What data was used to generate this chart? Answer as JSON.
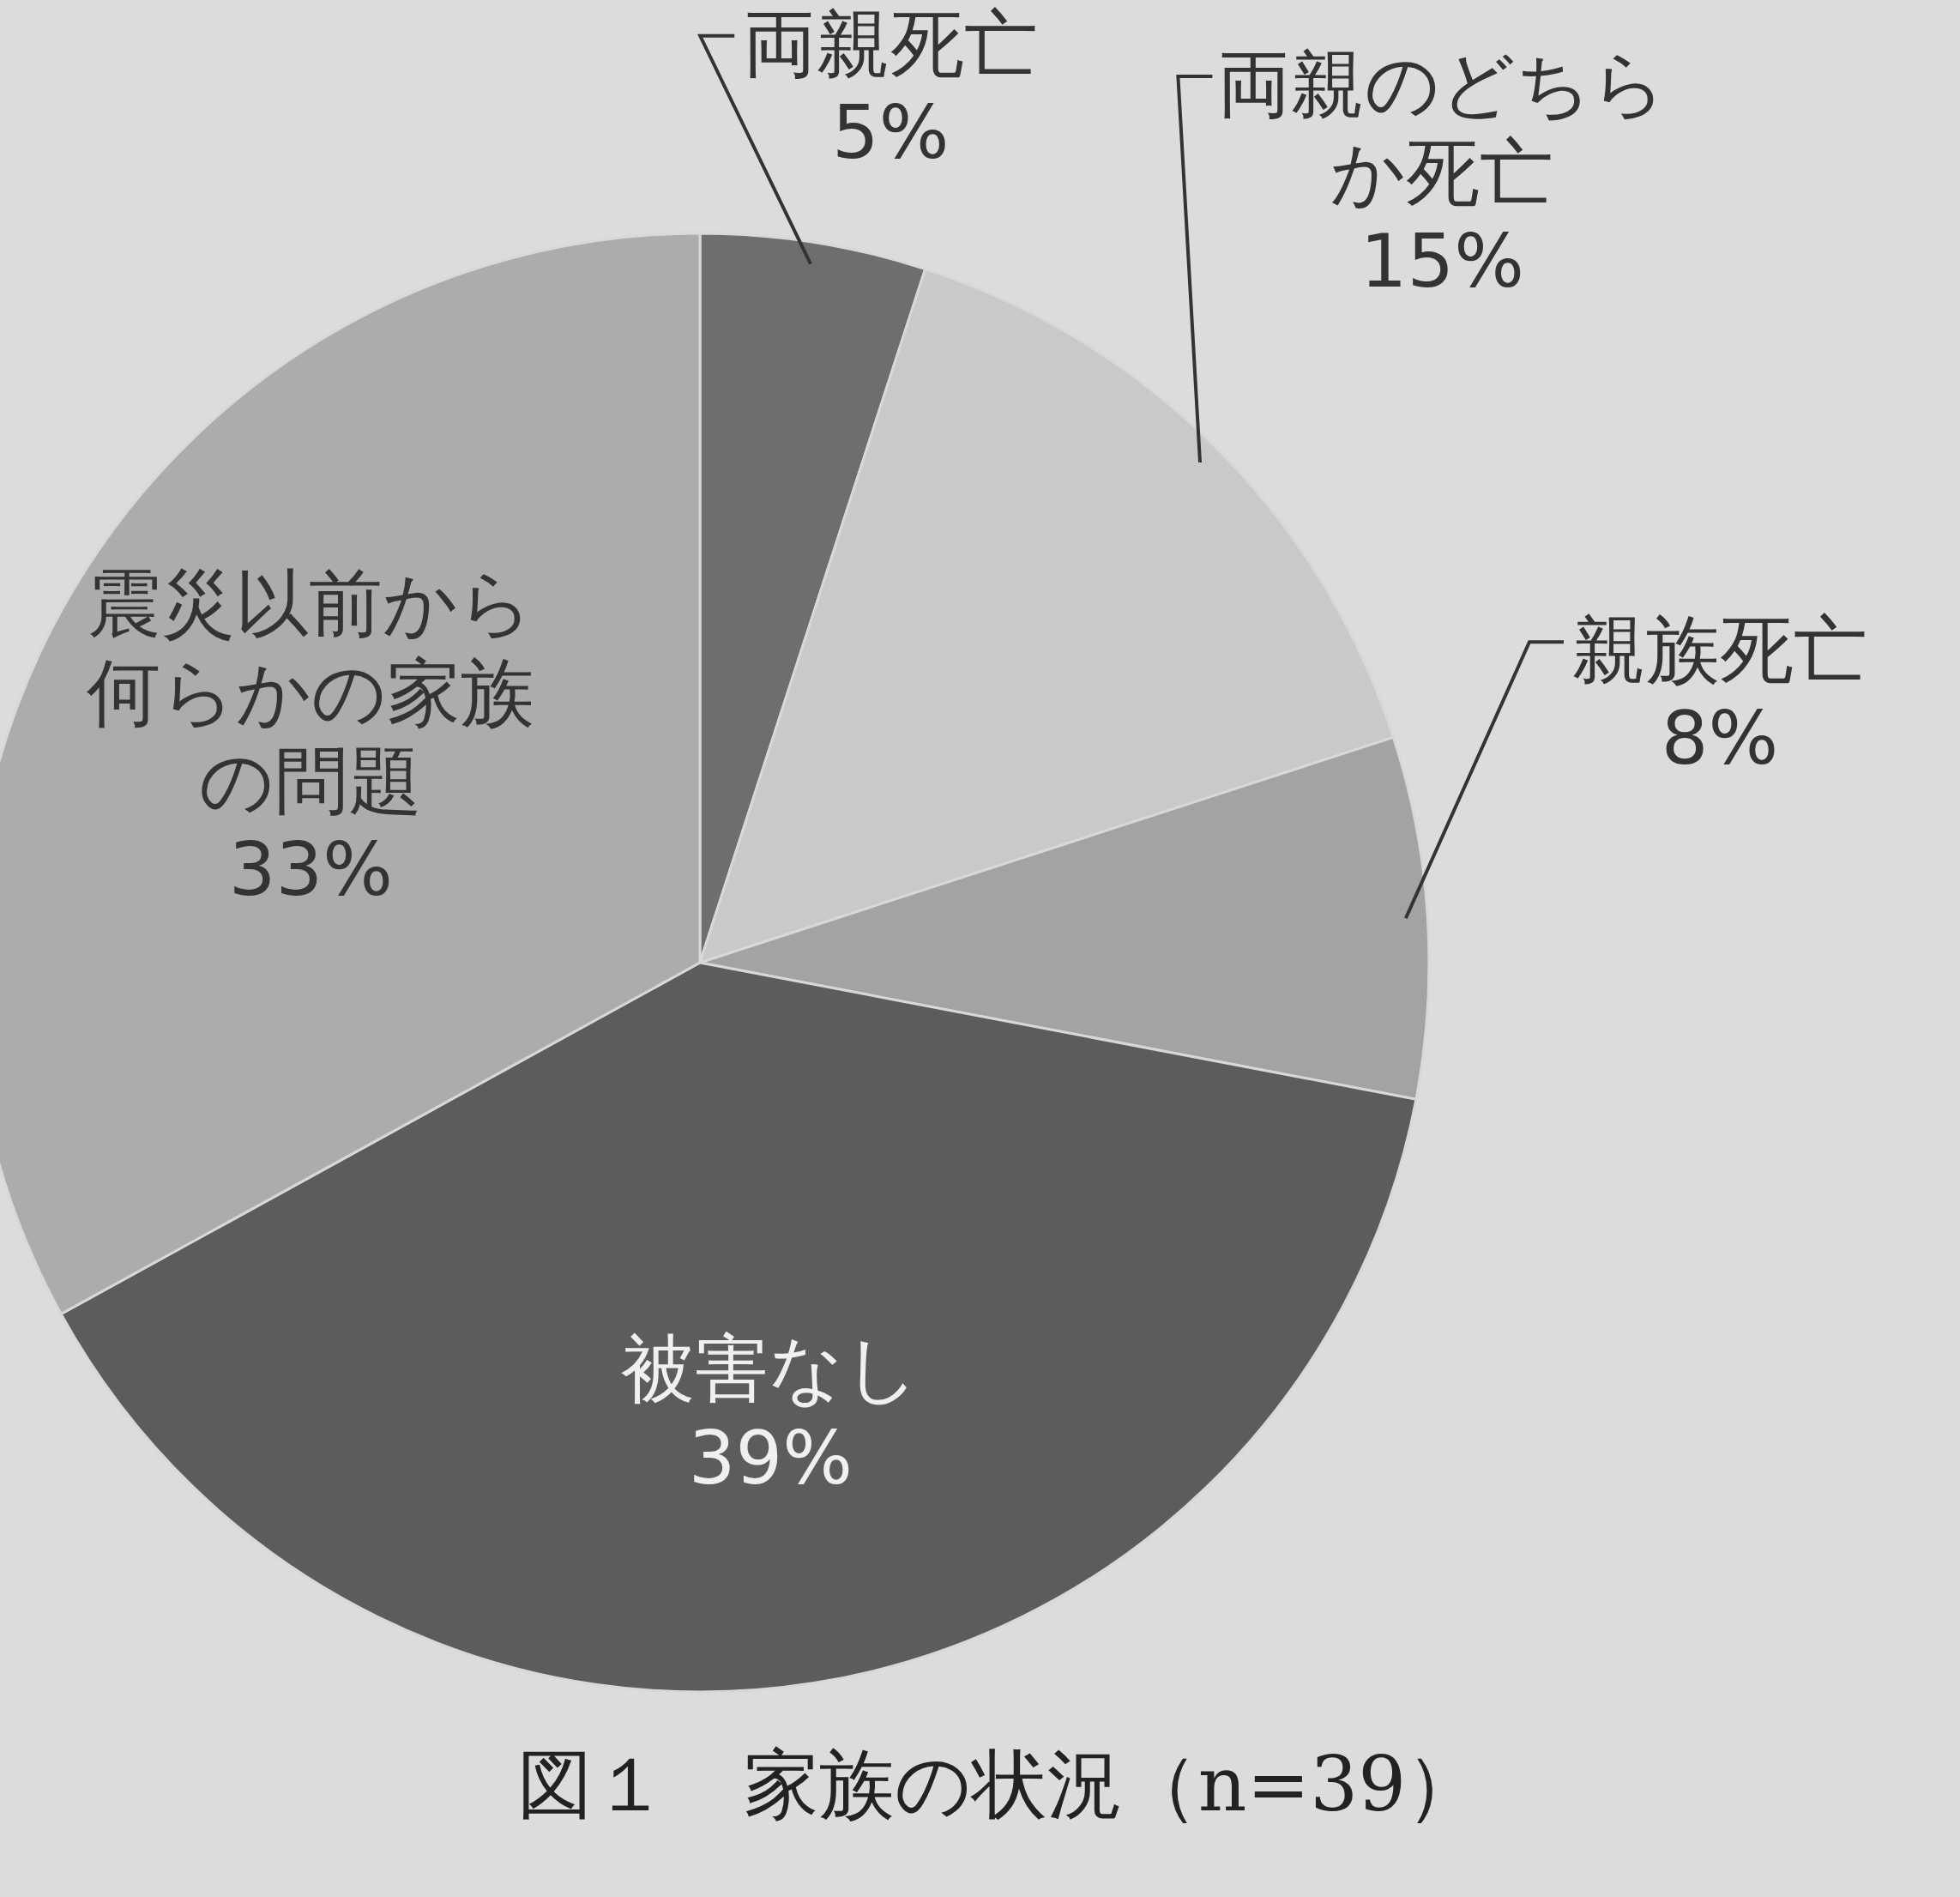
{
  "chart_data": {
    "type": "pie",
    "title": "図１　家族の状況（n=39）",
    "categories": [
      "両親死亡",
      "両親のどちらか死亡",
      "親族死亡",
      "被害なし",
      "震災以前から何らかの家族の問題"
    ],
    "values": [
      5,
      15,
      8,
      39,
      33
    ],
    "value_labels": [
      "5%",
      "15%",
      "8%",
      "39%",
      "33%"
    ],
    "colors": [
      "#6e6e6e",
      "#c9c9c9",
      "#a3a3a3",
      "#5c5c5c",
      "#acacac"
    ]
  }
}
